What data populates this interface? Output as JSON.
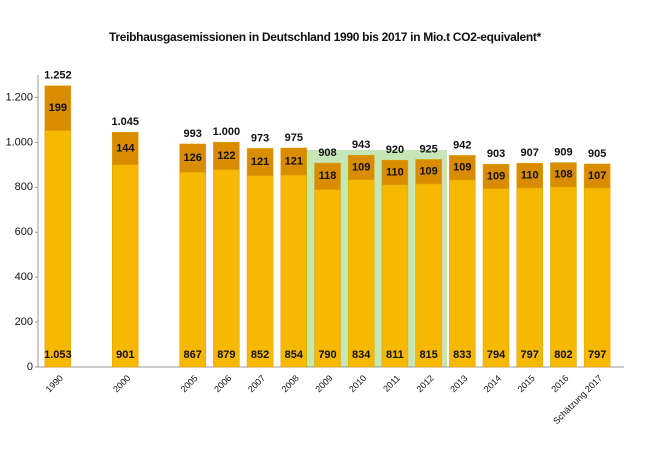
{
  "chart_data": {
    "type": "stacked_bar",
    "title": "Treibhausgasemissionen in Deutschland 1990 bis 2017 in Mio.t CO2-equivalent*",
    "categories": [
      "1990",
      null,
      "2000",
      null,
      "2005",
      "2006",
      "2007",
      "2008",
      "2009",
      "2010",
      "2011",
      "2012",
      "2013",
      "2014",
      "2015",
      "2016",
      "Schätzung 2017"
    ],
    "series": [
      {
        "color": "#f6b800",
        "values": [
          1053,
          null,
          901,
          null,
          867,
          879,
          852,
          854,
          790,
          834,
          811,
          815,
          833,
          794,
          797,
          802,
          797
        ],
        "value_labels": [
          "1.053",
          null,
          "901",
          null,
          "867",
          "879",
          "852",
          "854",
          "790",
          "834",
          "811",
          "815",
          "833",
          "794",
          "797",
          "802",
          "797"
        ]
      },
      {
        "color": "#d98c00",
        "values": [
          199,
          null,
          144,
          null,
          126,
          122,
          121,
          121,
          118,
          109,
          110,
          109,
          109,
          109,
          110,
          108,
          107
        ]
      }
    ],
    "totals": {
      "values": [
        1252,
        null,
        1045,
        null,
        993,
        1000,
        973,
        975,
        908,
        943,
        920,
        925,
        942,
        903,
        907,
        909,
        905
      ],
      "value_labels": [
        "1.252",
        null,
        "1.045",
        null,
        "993",
        "1.000",
        "973",
        "975",
        "908",
        "943",
        "920",
        "925",
        "942",
        "903",
        "907",
        "909",
        "905"
      ]
    },
    "ylim": [
      0,
      1300
    ],
    "yticks": [
      0,
      200,
      400,
      600,
      800,
      {
        "value": 1000,
        "label": "1.000"
      },
      {
        "value": 1200,
        "label": "1.200"
      }
    ],
    "grid": false
  }
}
